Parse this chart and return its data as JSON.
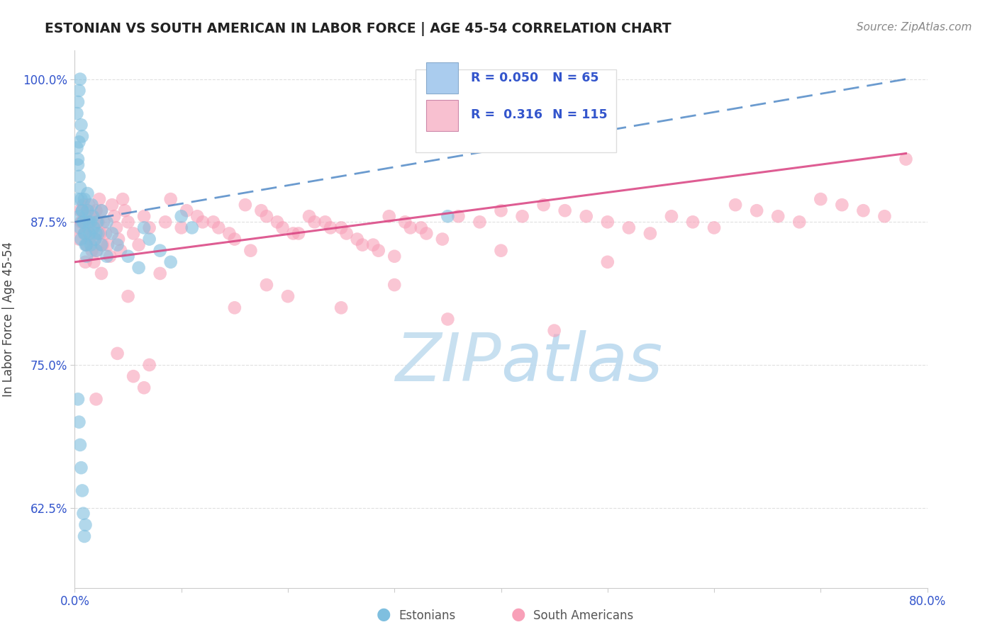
{
  "title": "ESTONIAN VS SOUTH AMERICAN IN LABOR FORCE | AGE 45-54 CORRELATION CHART",
  "source": "Source: ZipAtlas.com",
  "ylabel": "In Labor Force | Age 45-54",
  "xlim": [
    0.0,
    0.8
  ],
  "ylim": [
    0.555,
    1.025
  ],
  "ytick_positions": [
    0.625,
    0.75,
    0.875,
    1.0
  ],
  "yticklabels": [
    "62.5%",
    "75.0%",
    "87.5%",
    "100.0%"
  ],
  "R_estonian": 0.05,
  "N_estonian": 65,
  "R_southamerican": 0.316,
  "N_southamerican": 115,
  "estonian_color": "#7fbfdf",
  "southamerican_color": "#f8a0b8",
  "estonian_line_color": "#3a7abf",
  "southamerican_line_color": "#d94080",
  "legend_fill_estonian": "#aaccee",
  "legend_fill_southamerican": "#f8c0d0",
  "background_color": "#ffffff",
  "watermark_color": "#c8e0f0",
  "title_color": "#222222",
  "source_color": "#888888",
  "tick_color": "#3355cc",
  "ylabel_color": "#444444",
  "grid_color": "#dddddd"
}
